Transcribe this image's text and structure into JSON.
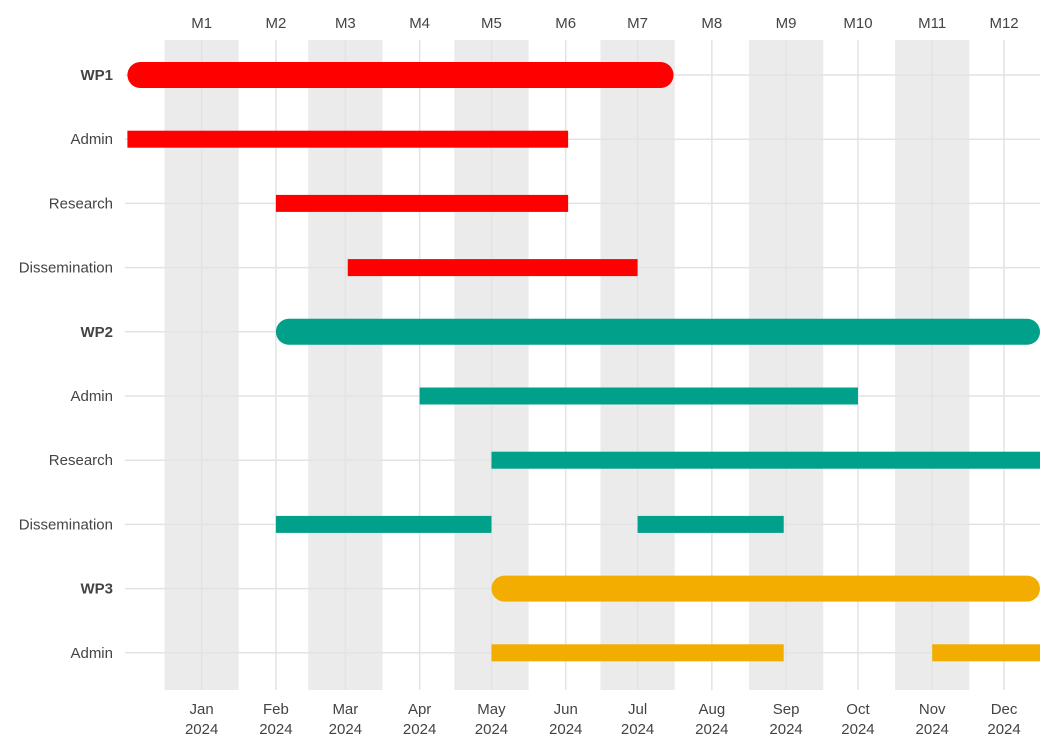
{
  "chart_data": {
    "type": "gantt",
    "top_axis_labels": [
      "M1",
      "M2",
      "M3",
      "M4",
      "M5",
      "M6",
      "M7",
      "M8",
      "M9",
      "M10",
      "M11",
      "M12"
    ],
    "bottom_axis_labels": [
      {
        "month": "Jan",
        "year": "2024"
      },
      {
        "month": "Feb",
        "year": "2024"
      },
      {
        "month": "Mar",
        "year": "2024"
      },
      {
        "month": "Apr",
        "year": "2024"
      },
      {
        "month": "May",
        "year": "2024"
      },
      {
        "month": "Jun",
        "year": "2024"
      },
      {
        "month": "Jul",
        "year": "2024"
      },
      {
        "month": "Aug",
        "year": "2024"
      },
      {
        "month": "Sep",
        "year": "2024"
      },
      {
        "month": "Oct",
        "year": "2024"
      },
      {
        "month": "Nov",
        "year": "2024"
      },
      {
        "month": "Dec",
        "year": "2024"
      }
    ],
    "x_range": [
      "2023-12-15",
      "2024-12-31"
    ],
    "shaded_columns": [
      "Jan",
      "Mar",
      "May",
      "Jul",
      "Sep",
      "Nov"
    ],
    "colors": {
      "WP1": "#ff0000",
      "WP2": "#00a08a",
      "WP3": "#f2ad00",
      "shading": "#ebebeb",
      "grid": "#e3e3e3"
    },
    "rows": [
      {
        "label": "WP1",
        "type": "package",
        "color": "#ff0000",
        "segments": [
          {
            "start": "2023-12-16",
            "end": "2024-07-31"
          }
        ]
      },
      {
        "label": "Admin",
        "type": "task",
        "color": "#ff0000",
        "segments": [
          {
            "start": "2023-12-16",
            "end": "2024-06-17"
          }
        ]
      },
      {
        "label": "Research",
        "type": "task",
        "color": "#ff0000",
        "segments": [
          {
            "start": "2024-02-16",
            "end": "2024-06-17"
          }
        ]
      },
      {
        "label": "Dissemination",
        "type": "task",
        "color": "#ff0000",
        "segments": [
          {
            "start": "2024-03-17",
            "end": "2024-07-16"
          }
        ]
      },
      {
        "label": "WP2",
        "type": "package",
        "color": "#00a08a",
        "segments": [
          {
            "start": "2024-02-16",
            "end": "2024-12-31"
          }
        ]
      },
      {
        "label": "Admin",
        "type": "task",
        "color": "#00a08a",
        "segments": [
          {
            "start": "2024-04-16",
            "end": "2024-10-16"
          }
        ]
      },
      {
        "label": "Research",
        "type": "task",
        "color": "#00a08a",
        "segments": [
          {
            "start": "2024-05-16",
            "end": "2024-12-31"
          }
        ]
      },
      {
        "label": "Dissemination",
        "type": "task",
        "color": "#00a08a",
        "segments": [
          {
            "start": "2024-02-16",
            "end": "2024-05-16"
          },
          {
            "start": "2024-07-16",
            "end": "2024-09-15"
          }
        ]
      },
      {
        "label": "WP3",
        "type": "package",
        "color": "#f2ad00",
        "segments": [
          {
            "start": "2024-05-16",
            "end": "2024-12-31"
          }
        ]
      },
      {
        "label": "Admin",
        "type": "task",
        "color": "#f2ad00",
        "segments": [
          {
            "start": "2024-05-16",
            "end": "2024-09-15"
          },
          {
            "start": "2024-11-16",
            "end": "2024-12-31"
          }
        ]
      }
    ]
  }
}
